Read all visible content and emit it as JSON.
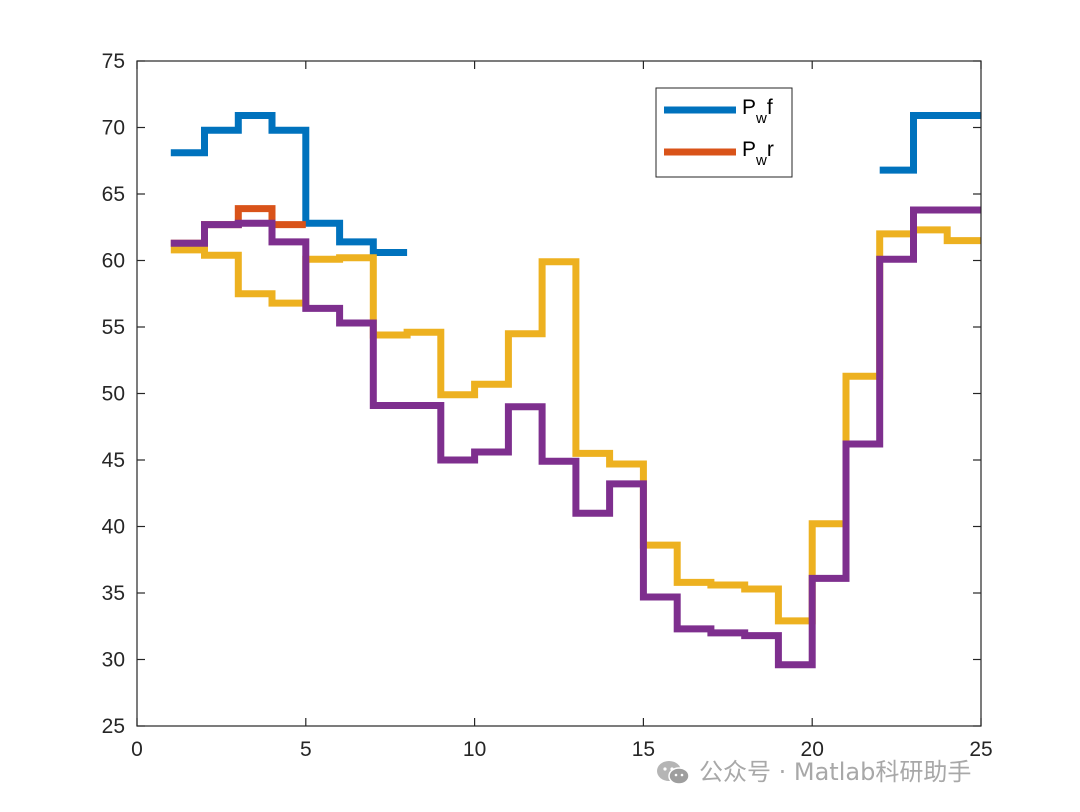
{
  "chart_data": {
    "type": "line",
    "style": "stairs",
    "xlim": [
      0,
      25
    ],
    "ylim": [
      25,
      75
    ],
    "xticks": [
      0,
      5,
      10,
      15,
      20,
      25
    ],
    "yticks": [
      25,
      30,
      35,
      40,
      45,
      50,
      55,
      60,
      65,
      70,
      75
    ],
    "grid": false,
    "legend_position": "top-right",
    "legend": [
      {
        "main1": "P",
        "sub": "w",
        "main2": "f",
        "color": "#0072BD"
      },
      {
        "main1": "P",
        "sub": "w",
        "main2": "r",
        "color": "#D95319"
      }
    ],
    "series": [
      {
        "name": "Pwf",
        "color": "#0072BD",
        "x": [
          1,
          2,
          3,
          4,
          5,
          6,
          7,
          8,
          9,
          10,
          11,
          12,
          13,
          14,
          15,
          16,
          17,
          18,
          19,
          20,
          21,
          22,
          23,
          24
        ],
        "y": [
          68.1,
          69.8,
          70.9,
          69.8,
          62.8,
          61.4,
          60.6,
          null,
          null,
          null,
          null,
          null,
          null,
          null,
          null,
          null,
          null,
          null,
          null,
          null,
          null,
          66.8,
          70.9,
          70.9
        ]
      },
      {
        "color": "#D95319",
        "x": [
          1,
          2,
          3,
          4,
          5,
          6,
          7,
          8,
          9,
          10,
          11,
          12,
          13,
          14,
          15,
          16,
          17,
          18,
          19,
          20,
          21,
          22,
          23,
          24
        ],
        "y": [
          61.3,
          62.7,
          63.9,
          62.7,
          null,
          null,
          null,
          null,
          null,
          null,
          null,
          null,
          null,
          null,
          null,
          null,
          null,
          null,
          null,
          null,
          null,
          null,
          null,
          null
        ]
      },
      {
        "color": "#EDB120",
        "x": [
          1,
          2,
          3,
          4,
          5,
          6,
          7,
          8,
          9,
          10,
          11,
          12,
          13,
          14,
          15,
          16,
          17,
          18,
          19,
          20,
          21,
          22,
          23,
          24
        ],
        "y": [
          60.8,
          60.4,
          57.5,
          56.8,
          60.1,
          60.2,
          54.4,
          54.6,
          49.9,
          50.7,
          54.5,
          59.9,
          45.5,
          44.7,
          38.6,
          35.8,
          35.6,
          35.3,
          32.9,
          40.2,
          51.3,
          62.0,
          62.3,
          61.5
        ]
      },
      {
        "color": "#7E2F8E",
        "x": [
          1,
          2,
          3,
          4,
          5,
          6,
          7,
          8,
          9,
          10,
          11,
          12,
          13,
          14,
          15,
          16,
          17,
          18,
          19,
          20,
          21,
          22,
          23,
          24
        ],
        "y": [
          61.3,
          62.7,
          62.8,
          61.4,
          56.4,
          55.3,
          49.1,
          49.1,
          45.0,
          45.6,
          49.0,
          44.9,
          41.0,
          43.2,
          34.7,
          32.3,
          32.0,
          31.8,
          29.6,
          36.1,
          46.2,
          60.1,
          63.8,
          63.8
        ]
      }
    ]
  },
  "watermark": {
    "text": "公众号 · Matlab科研助手",
    "icon": "wechat-icon"
  }
}
